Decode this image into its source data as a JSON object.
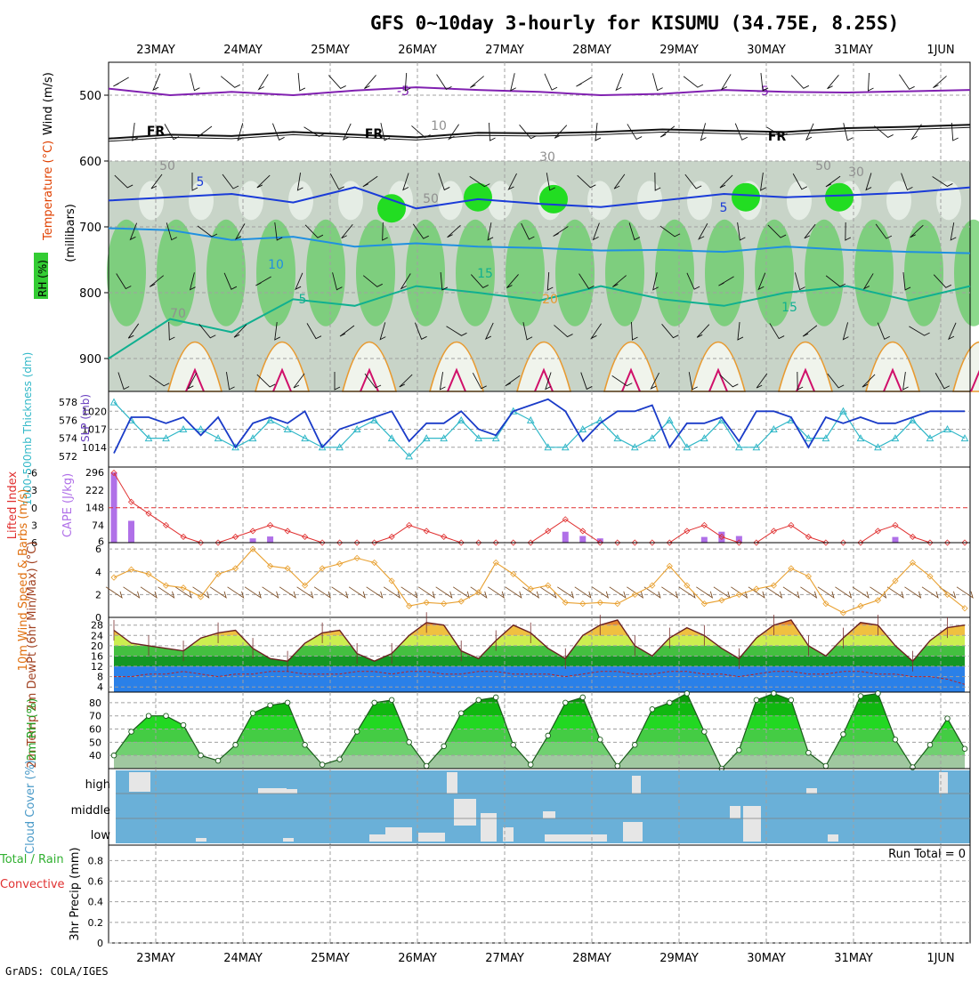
{
  "chart_data": {
    "type": "meteogram",
    "title": "GFS 0~10day 3-hourly for KISUMU (34.75E, 8.25S)",
    "footer": "GrADS: COLA/IGES",
    "dates": [
      "23MAY",
      "24MAY",
      "25MAY",
      "26MAY",
      "27MAY",
      "28MAY",
      "29MAY",
      "30MAY",
      "31MAY",
      "1JUN"
    ],
    "upper_air": {
      "left_labels": [
        "Wind (m/s)",
        "Temperature (°C)",
        "RH (%)"
      ],
      "ylabel": "(millibars)",
      "levels": [
        500,
        600,
        700,
        800,
        900
      ],
      "ylim": [
        450,
        950
      ],
      "contour_labels": [
        "-5",
        "-5",
        "FR",
        "FR",
        "FR",
        "5",
        "5",
        "10",
        "15",
        "15",
        "20",
        "5",
        "30",
        "50",
        "10",
        "50",
        "50",
        "30",
        "70"
      ],
      "temp_isotherms": [
        {
          "label": "-5",
          "hPa": [
            490,
            500,
            495,
            500,
            493,
            488,
            492,
            495,
            500,
            498,
            492,
            495,
            496,
            494,
            492
          ]
        },
        {
          "label": "FR",
          "hPa": [
            566,
            560,
            562,
            556,
            560,
            564,
            557,
            558,
            556,
            552,
            554,
            556,
            550,
            548,
            545
          ]
        },
        {
          "label": "5",
          "hPa": [
            660,
            655,
            650,
            663,
            640,
            672,
            658,
            665,
            670,
            660,
            650,
            655,
            652,
            648,
            640
          ]
        },
        {
          "label": "10",
          "hPa": [
            702,
            705,
            720,
            715,
            730,
            725,
            730,
            732,
            736,
            735,
            738,
            730,
            735,
            738,
            740
          ]
        },
        {
          "label": "15",
          "hPa": [
            900,
            840,
            860,
            810,
            820,
            790,
            800,
            812,
            790,
            810,
            820,
            800,
            790,
            812,
            790
          ]
        }
      ]
    },
    "slp_thickness": {
      "y_left_label": "1000-500mb Thickness (dm)",
      "y_right_label": "SLP (mb)",
      "thickness_ticks": [
        572,
        574,
        576,
        578
      ],
      "slp_ticks": [
        1014,
        1017,
        1020
      ],
      "slp": [
        1013,
        1019,
        1019,
        1018,
        1019,
        1016,
        1019,
        1014,
        1018,
        1019,
        1018,
        1020,
        1014,
        1017,
        1018,
        1019,
        1020,
        1015,
        1018,
        1018,
        1020,
        1017,
        1016,
        1020,
        1021,
        1022,
        1020,
        1015,
        1018,
        1020,
        1020,
        1021,
        1014,
        1018,
        1018,
        1019,
        1015,
        1020,
        1020,
        1019,
        1014,
        1019,
        1018,
        1019,
        1018,
        1018,
        1019,
        1020,
        1020,
        1020
      ],
      "thickness": [
        578,
        576,
        574,
        574,
        575,
        575,
        574,
        573,
        574,
        576,
        575,
        574,
        573,
        573,
        575,
        576,
        574,
        572,
        574,
        574,
        576,
        574,
        574,
        577,
        576,
        573,
        573,
        575,
        576,
        574,
        573,
        574,
        576,
        573,
        574,
        576,
        573,
        573,
        575,
        576,
        574,
        574,
        577,
        574,
        573,
        574,
        576,
        574,
        575,
        574
      ]
    },
    "li_cape": {
      "y_left_label": "Lifted Index",
      "y_right_label": "CAPE (J/kg)",
      "li_ticks": [
        "-6",
        "-3",
        "0",
        "3",
        "6"
      ],
      "cape_ticks": [
        296,
        222,
        148,
        74,
        6
      ],
      "lifted_index": [
        -6,
        -1,
        1,
        3,
        5,
        6,
        6,
        5,
        4,
        3,
        4,
        5,
        6,
        6,
        6,
        6,
        5,
        3,
        4,
        5,
        6,
        6,
        6,
        6,
        6,
        4,
        2,
        4,
        6,
        6,
        6,
        6,
        6,
        4,
        3,
        5,
        6,
        6,
        4,
        3,
        5,
        6,
        6,
        6,
        4,
        3,
        5,
        6,
        6,
        6
      ],
      "cape": [
        296,
        92,
        0,
        0,
        0,
        0,
        0,
        0,
        18,
        26,
        0,
        0,
        0,
        0,
        0,
        0,
        0,
        0,
        0,
        0,
        0,
        0,
        0,
        0,
        0,
        0,
        46,
        28,
        18,
        0,
        0,
        0,
        0,
        0,
        24,
        46,
        28,
        0,
        0,
        0,
        0,
        0,
        0,
        0,
        0,
        24,
        0,
        0,
        0,
        0
      ]
    },
    "wind10m": {
      "y_label": "10m Wind Speed & Barbs (m/s)",
      "ticks": [
        0,
        2,
        4,
        6
      ],
      "speed": [
        3.5,
        4.2,
        3.8,
        2.8,
        2.6,
        1.8,
        3.8,
        4.3,
        6.0,
        4.5,
        4.3,
        2.8,
        4.3,
        4.7,
        5.2,
        4.8,
        3.2,
        1.0,
        1.3,
        1.2,
        1.4,
        2.2,
        4.8,
        3.8,
        2.5,
        2.8,
        1.3,
        1.2,
        1.3,
        1.2,
        2.0,
        2.8,
        4.5,
        2.8,
        1.2,
        1.5,
        2.0,
        2.5,
        2.8,
        4.3,
        3.6,
        1.2,
        0.4,
        1.0,
        1.5,
        3.2,
        4.8,
        3.6,
        2.0,
        0.8
      ]
    },
    "temp2m": {
      "y_label": "2m Temp 2m DewPt (6hr Min/Max) (°C)",
      "ticks": [
        4,
        8,
        12,
        16,
        20,
        24,
        28
      ],
      "temp": [
        26,
        21,
        20,
        19,
        18,
        23,
        25,
        26,
        19,
        15,
        14,
        21,
        25,
        26,
        17,
        14,
        17,
        24,
        29,
        28,
        18,
        15,
        22,
        28,
        25,
        19,
        15,
        24,
        28,
        30,
        20,
        16,
        23,
        27,
        24,
        19,
        15,
        23,
        28,
        30,
        20,
        16,
        23,
        29,
        28,
        20,
        14,
        22,
        27,
        28
      ],
      "dewpt": [
        8,
        8,
        9,
        9,
        10,
        9,
        8,
        9,
        9,
        10,
        10,
        9,
        9,
        9,
        10,
        10,
        9,
        10,
        10,
        9,
        9,
        10,
        10,
        9,
        9,
        9,
        8,
        9,
        10,
        10,
        9,
        9,
        10,
        10,
        9,
        9,
        8,
        9,
        10,
        10,
        9,
        9,
        10,
        10,
        9,
        9,
        8,
        8,
        7,
        5
      ]
    },
    "rh2m": {
      "y_label": "2m RH (%)",
      "ticks": [
        40,
        50,
        60,
        70,
        80
      ],
      "values": [
        40,
        58,
        70,
        70,
        63,
        40,
        36,
        48,
        72,
        78,
        80,
        48,
        33,
        37,
        58,
        80,
        82,
        50,
        32,
        47,
        72,
        82,
        84,
        48,
        33,
        55,
        80,
        84,
        52,
        32,
        48,
        75,
        80,
        87,
        58,
        30,
        44,
        82,
        87,
        82,
        42,
        32,
        56,
        85,
        87,
        52,
        31,
        48,
        68,
        45
      ]
    },
    "cloud": {
      "y_label": "Cloud Cover (%)",
      "rows": [
        "high",
        "middle",
        "low"
      ]
    },
    "precip": {
      "y_label_parts": [
        "Total / Rain",
        "Convective",
        "3hr Precip (mm)"
      ],
      "ticks": [
        "0",
        "0.2",
        "0.4",
        "0.6",
        "0.8"
      ],
      "run_total": "Run Total = 0"
    },
    "colors": {
      "rh_green": "#38c838",
      "temp_red": "#e03030",
      "slp_blue": "#1a3bc8",
      "thickness_cyan": "#32b8c8",
      "cloud_blue": "#6ab0d8",
      "wind_orange": "#e8a030"
    }
  }
}
